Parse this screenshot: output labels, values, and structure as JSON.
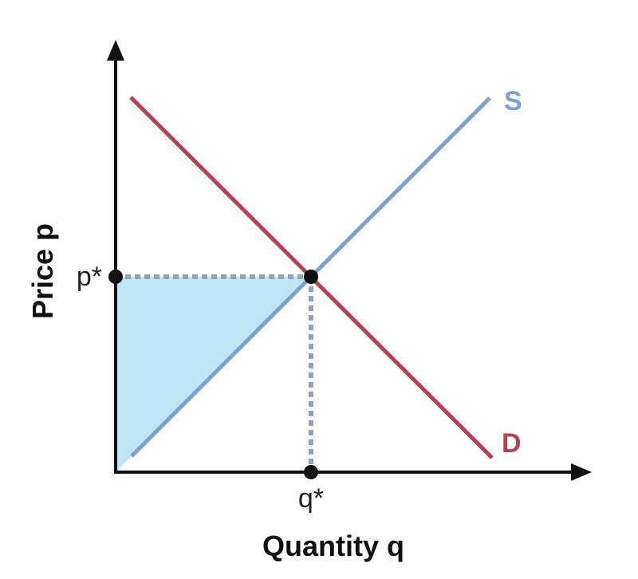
{
  "diagram": {
    "xlabel": "Quantity q",
    "ylabel": "Price p",
    "supply_label": "S",
    "demand_label": "D",
    "equilibrium_price_label": "p*",
    "equilibrium_quantity_label": "q*",
    "colors": {
      "supply": "#7d9fd3",
      "demand": "#b8404f",
      "shaded_area": "#bfe6f5",
      "guide_lines": "#8fa4b8",
      "axes": "#111111"
    }
  }
}
